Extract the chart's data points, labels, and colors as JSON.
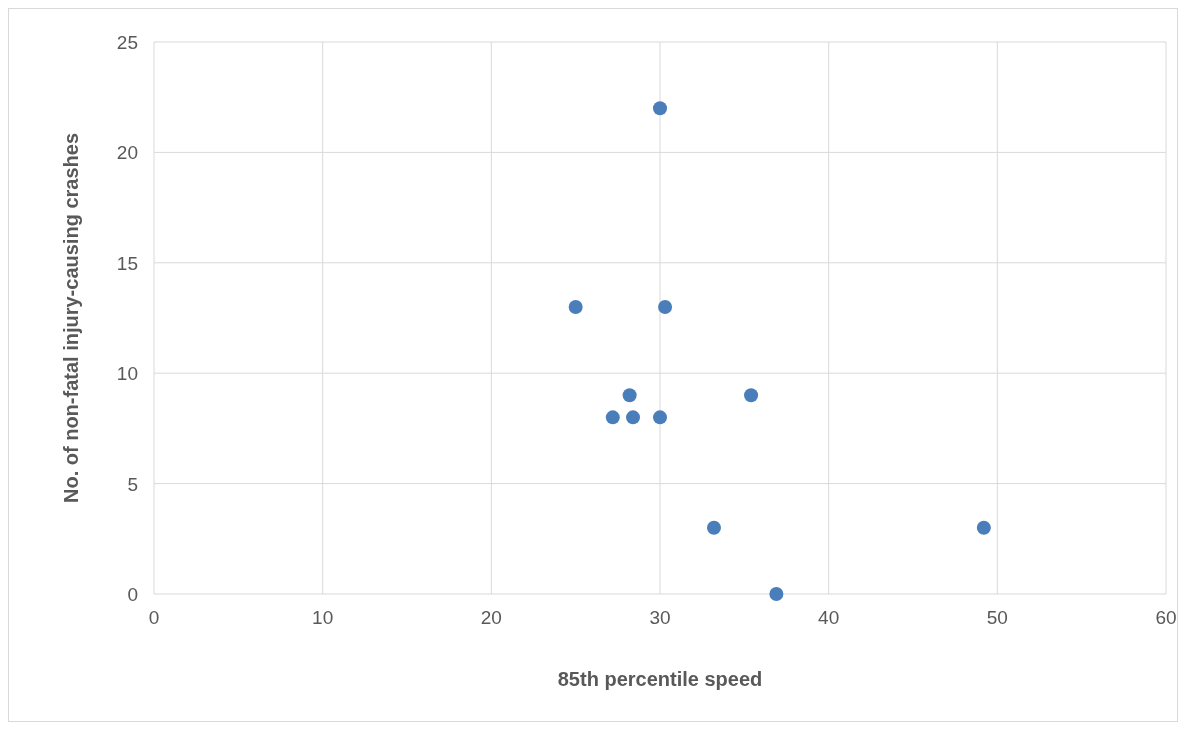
{
  "chart_data": {
    "type": "scatter",
    "xlabel": "85th percentile speed",
    "ylabel": "No. of non-fatal injury-causing crashes",
    "x": [
      25,
      30,
      30.3,
      28.2,
      27.2,
      28.4,
      30,
      35.4,
      33.2,
      36.9,
      49.2
    ],
    "values": [
      13,
      22,
      13,
      9,
      8,
      8,
      8,
      9,
      3,
      0,
      3
    ],
    "color": "#4a7ebb",
    "marker": "circle",
    "xlim": [
      0,
      60
    ],
    "xticks": [
      0,
      10,
      20,
      30,
      40,
      50,
      60
    ],
    "ylim": [
      0,
      25
    ],
    "yticks": [
      0,
      5,
      10,
      15,
      20,
      25
    ],
    "grid": true
  }
}
